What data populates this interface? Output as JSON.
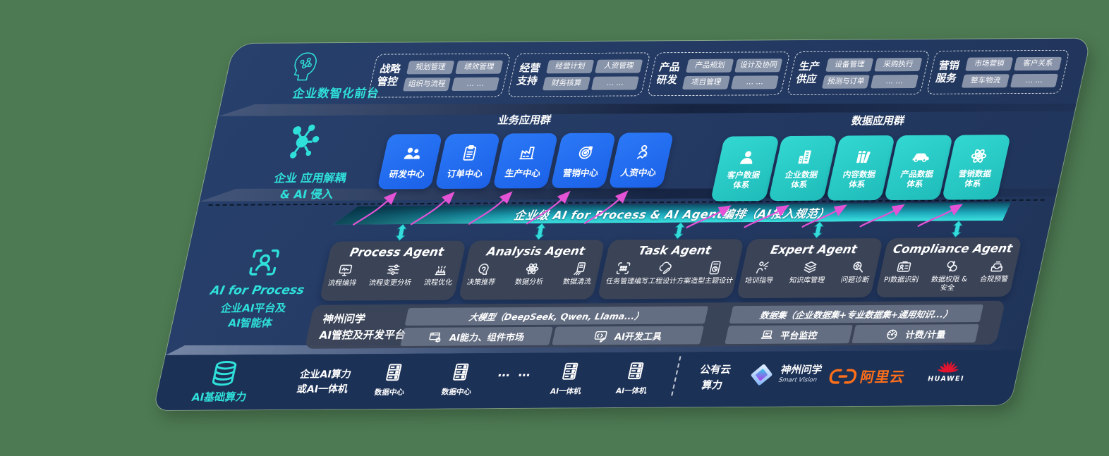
{
  "colors": {
    "background": "#4d7a52",
    "panel": "#243a63",
    "infra_band": "#1c3156",
    "accent_teal": "#2fe0da",
    "app_blue": "#1e6af0",
    "data_teal": "#28cbc8",
    "arrow_pink": "#e453d6",
    "bus_gradient_from": "#0d4c64",
    "bus_gradient_to": "#3ce2e0",
    "aliyun_orange": "#ff6f19",
    "huawei_red": "#e4142e"
  },
  "front_office": {
    "label": "企业数智化前台",
    "icon": "ai-head-icon",
    "groups": [
      {
        "title": "战略管控",
        "items": [
          "规划管理",
          "绩效管理",
          "组织与流程",
          "… …"
        ]
      },
      {
        "title": "经营支持",
        "items": [
          "经营计划",
          "人资管理",
          "财务核算",
          "… …"
        ]
      },
      {
        "title": "产品研发",
        "items": [
          "产品规划",
          "设计及协同",
          "项目管理",
          "… …"
        ]
      },
      {
        "title": "生产供应",
        "items": [
          "设备管理",
          "采购执行",
          "预测与订单",
          "… …"
        ]
      },
      {
        "title": "营销服务",
        "items": [
          "市场营销",
          "客户关系",
          "整车物流",
          "… …"
        ]
      }
    ]
  },
  "app_layer": {
    "icon": "molecule-icon",
    "label_line1": "企业 应用解耦",
    "label_line2": "& AI 侵入",
    "business_group_title": "业务应用群",
    "business_apps": [
      {
        "label": "研发中心",
        "icon": "users-icon"
      },
      {
        "label": "订单中心",
        "icon": "clipboard-icon"
      },
      {
        "label": "生产中心",
        "icon": "factory-icon"
      },
      {
        "label": "营销中心",
        "icon": "target-icon"
      },
      {
        "label": "人资中心",
        "icon": "hr-people-icon"
      }
    ],
    "data_group_title": "数据应用群",
    "data_systems": [
      {
        "label": "客户数据体系",
        "icon": "person-icon"
      },
      {
        "label": "企业数据体系",
        "icon": "building-icon"
      },
      {
        "label": "内容数据体系",
        "icon": "content-books-icon"
      },
      {
        "label": "产品数据体系",
        "icon": "car-icon"
      },
      {
        "label": "营销数据体系",
        "icon": "atom-icon"
      }
    ]
  },
  "ai_bus": {
    "title": "企业级 AI for Process & AI Agent编排（AI接入规范）"
  },
  "agent_layer": {
    "side_icon": "person-scan-icon",
    "side_label_en": "AI for Process",
    "side_label_zh1": "企业AI平台及",
    "side_label_zh2": "AI智能体",
    "agents": [
      {
        "title": "Process Agent",
        "items": [
          {
            "label": "流程编排",
            "icon": "workflow-monitor-icon"
          },
          {
            "label": "流程变更分析",
            "icon": "change-sliders-icon"
          },
          {
            "label": "流程优化",
            "icon": "optimize-machine-icon"
          }
        ]
      },
      {
        "title": "Analysis Agent",
        "items": [
          {
            "label": "决策推荐",
            "icon": "decision-head-icon"
          },
          {
            "label": "数据分析",
            "icon": "atom-icon"
          },
          {
            "label": "数据清洗",
            "icon": "data-clean-icon"
          }
        ]
      },
      {
        "title": "Task Agent",
        "items": [
          {
            "label": "任务管理",
            "icon": "task-scan-icon"
          },
          {
            "label": "编写工程设计方案",
            "icon": "cloud-design-icon"
          },
          {
            "label": "造型主题设计",
            "icon": "design-tablet-icon"
          }
        ]
      },
      {
        "title": "Expert Agent",
        "items": [
          {
            "label": "培训指导",
            "icon": "training-guide-icon"
          },
          {
            "label": "知识库管理",
            "icon": "knowledge-layers-icon"
          },
          {
            "label": "问题诊断",
            "icon": "diagnosis-icon"
          }
        ]
      },
      {
        "title": "Compliance Agent",
        "items": [
          {
            "label": "PI数据识别",
            "icon": "pi-card-icon"
          },
          {
            "label": "数据权限 &\n安全",
            "icon": "data-permission-icon"
          },
          {
            "label": "合规预警",
            "icon": "alert-inbox-icon"
          }
        ]
      }
    ]
  },
  "platform": {
    "name_line1": "神州问学",
    "name_line2": "AI管控及开发平台",
    "model_bar": "大模型（DeepSeek, Qwen, Llama...）",
    "dataset_bar": "数据集（企业数据集+专业数据集+通用知识...）",
    "cells": [
      {
        "label": "AI能力、组件市场",
        "icon": "ai-market-icon"
      },
      {
        "label": "AI开发工具",
        "icon": "dev-tools-icon"
      },
      {
        "label": "平台监控",
        "icon": "platform-monitor-icon"
      },
      {
        "label": "计费/计量",
        "icon": "gauge-icon"
      }
    ]
  },
  "infra": {
    "label": "AI基础算力",
    "icon": "database-icon",
    "compute_label_line1": "企业AI算力",
    "compute_label_line2": "或AI一体机",
    "nodes": [
      {
        "label": "数据中心",
        "icon": "server-icon"
      },
      {
        "label": "数据中心",
        "icon": "server-icon"
      },
      {
        "label": "… …"
      },
      {
        "label": "AI一体机",
        "icon": "server-icon"
      },
      {
        "label": "AI一体机",
        "icon": "server-icon"
      }
    ],
    "public_cloud": "公有云\n算力",
    "vendors": [
      {
        "name": "神州问学",
        "sub": "Smart Vision",
        "icon": "smartvision-logo"
      },
      {
        "name": "阿里云",
        "icon": "aliyun-logo"
      },
      {
        "name": "HUAWEI",
        "icon": "huawei-logo"
      }
    ]
  }
}
